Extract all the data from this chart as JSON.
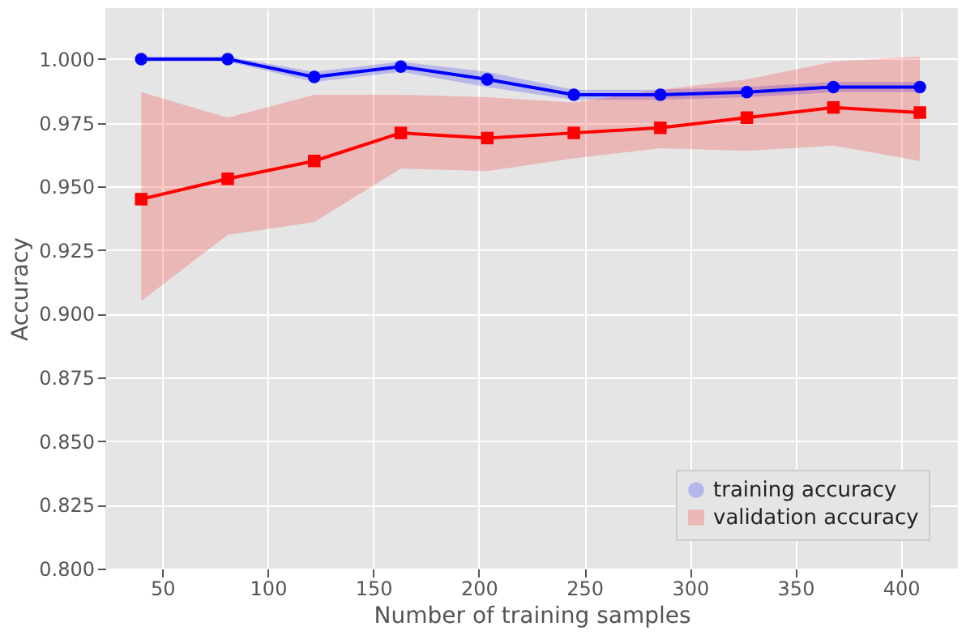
{
  "chart_data": {
    "type": "line",
    "xlabel": "Number of training samples",
    "ylabel": "Accuracy",
    "x": [
      40,
      81,
      122,
      163,
      204,
      245,
      286,
      327,
      368,
      409
    ],
    "series": [
      {
        "name": "training accuracy",
        "color": "#0000ff",
        "marker": "circle",
        "values": [
          1.0,
          1.0,
          0.993,
          0.997,
          0.992,
          0.986,
          0.986,
          0.987,
          0.989,
          0.989
        ],
        "lower": [
          0.999,
          0.999,
          0.991,
          0.995,
          0.989,
          0.984,
          0.984,
          0.985,
          0.987,
          0.987
        ],
        "upper": [
          1.001,
          1.001,
          0.995,
          0.999,
          0.995,
          0.988,
          0.988,
          0.989,
          0.991,
          0.991
        ]
      },
      {
        "name": "validation accuracy",
        "color": "#ff0000",
        "marker": "square",
        "values": [
          0.945,
          0.953,
          0.96,
          0.971,
          0.969,
          0.971,
          0.973,
          0.977,
          0.981,
          0.979
        ],
        "lower": [
          0.905,
          0.931,
          0.936,
          0.957,
          0.956,
          0.961,
          0.965,
          0.964,
          0.966,
          0.96
        ],
        "upper": [
          0.987,
          0.977,
          0.986,
          0.986,
          0.985,
          0.983,
          0.988,
          0.992,
          0.999,
          1.001
        ]
      }
    ],
    "xlim": [
      23,
      427
    ],
    "xticks": [
      50,
      100,
      150,
      200,
      250,
      300,
      350,
      400
    ],
    "ylim": [
      0.8,
      1.02
    ],
    "yticks": [
      {
        "value": 0.8,
        "label": "0.800"
      },
      {
        "value": 0.825,
        "label": "0.825"
      },
      {
        "value": 0.85,
        "label": "0.850"
      },
      {
        "value": 0.875,
        "label": "0.875"
      },
      {
        "value": 0.9,
        "label": "0.900"
      },
      {
        "value": 0.925,
        "label": "0.925"
      },
      {
        "value": 0.95,
        "label": "0.950"
      },
      {
        "value": 0.975,
        "label": "0.975"
      },
      {
        "value": 1.0,
        "label": "1.000"
      }
    ],
    "grid": true,
    "legend": "bottom right",
    "line_style": "solid"
  }
}
